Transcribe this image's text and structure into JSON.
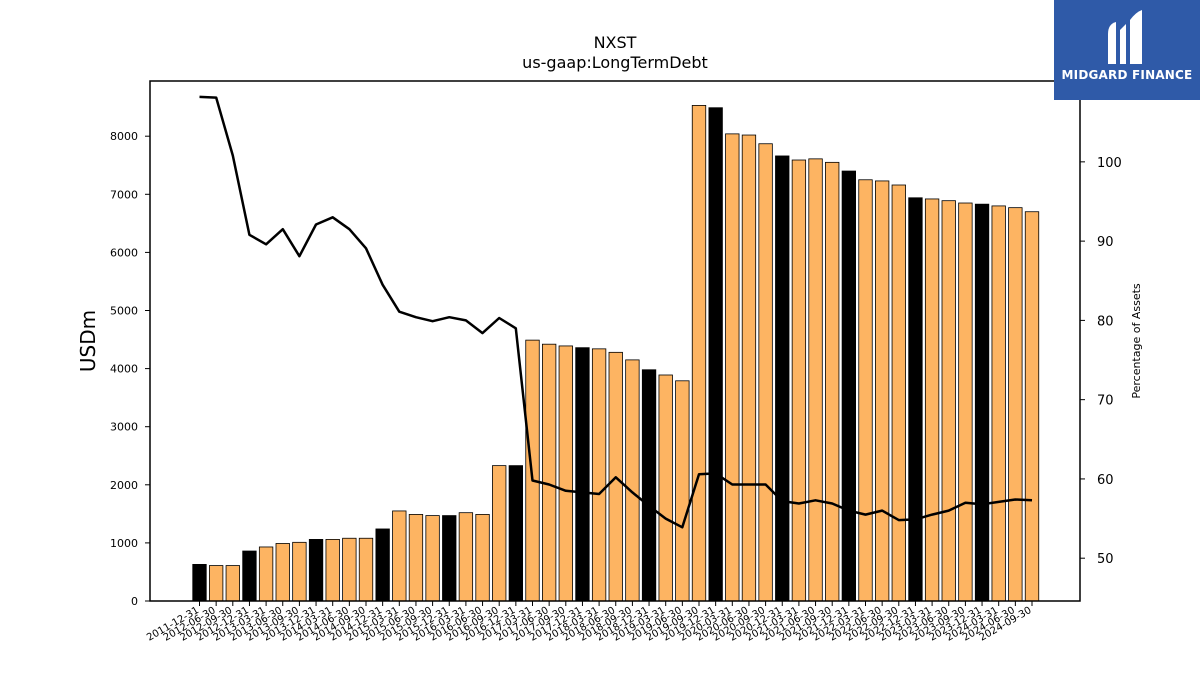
{
  "chart_data": {
    "type": "bar",
    "title": "NXST",
    "subtitle": "us-gaap:LongTermDebt",
    "ylabel": "USDm",
    "y2label": "Percentage of Assets",
    "ylim": [
      0,
      8950
    ],
    "y2lim": [
      44.6,
      110.2
    ],
    "yticks": [
      0,
      1000,
      2000,
      3000,
      4000,
      5000,
      6000,
      7000,
      8000
    ],
    "y2ticks": [
      50,
      60,
      70,
      80,
      90,
      100
    ],
    "categories": [
      "2011-12-31",
      "2012-06-30",
      "2012-09-30",
      "2012-12-31",
      "2013-03-31",
      "2013-06-30",
      "2013-09-30",
      "2013-12-31",
      "2014-03-31",
      "2014-06-30",
      "2014-09-30",
      "2014-12-31",
      "2015-03-31",
      "2015-06-30",
      "2015-09-30",
      "2015-12-31",
      "2016-03-31",
      "2016-06-30",
      "2016-09-30",
      "2016-12-31",
      "2017-03-31",
      "2017-06-30",
      "2017-09-30",
      "2017-12-31",
      "2018-03-31",
      "2018-06-30",
      "2018-09-30",
      "2018-12-31",
      "2019-03-31",
      "2019-06-30",
      "2019-09-30",
      "2019-12-31",
      "2020-03-31",
      "2020-06-30",
      "2020-09-30",
      "2020-12-31",
      "2021-03-31",
      "2021-06-30",
      "2021-09-30",
      "2021-12-31",
      "2022-03-31",
      "2022-06-30",
      "2022-09-30",
      "2022-12-31",
      "2023-03-31",
      "2023-06-30",
      "2023-09-30",
      "2023-12-31",
      "2024-03-31",
      "2024-06-30",
      "2024-09-30"
    ],
    "series": [
      {
        "type": "bar",
        "values": [
          630,
          610,
          610,
          860,
          930,
          990,
          1010,
          1060,
          1060,
          1080,
          1080,
          1240,
          1550,
          1490,
          1470,
          1470,
          1520,
          1490,
          2330,
          2330,
          4490,
          4420,
          4390,
          4360,
          4340,
          4280,
          4150,
          3980,
          3890,
          3790,
          8530,
          8490,
          8040,
          8020,
          7870,
          7660,
          7590,
          7610,
          7550,
          7400,
          7250,
          7230,
          7160,
          6940,
          6920,
          6890,
          6850,
          6830,
          6800,
          6770,
          6700
        ],
        "highlight": [
          true,
          false,
          false,
          true,
          false,
          false,
          false,
          true,
          false,
          false,
          false,
          true,
          false,
          false,
          false,
          true,
          false,
          false,
          false,
          true,
          false,
          false,
          false,
          true,
          false,
          false,
          false,
          true,
          false,
          false,
          false,
          true,
          false,
          false,
          false,
          true,
          false,
          false,
          false,
          true,
          false,
          false,
          false,
          true,
          false,
          false,
          false,
          true,
          false,
          false,
          false
        ]
      },
      {
        "type": "line",
        "axis": "right",
        "values": [
          108.2,
          108.1,
          100.8,
          90.8,
          89.6,
          91.5,
          88.1,
          92.1,
          93.0,
          91.5,
          89.1,
          84.5,
          81.1,
          80.4,
          79.9,
          80.4,
          80.0,
          78.4,
          80.3,
          79.0,
          59.8,
          59.3,
          58.5,
          58.3,
          58.1,
          60.2,
          58.3,
          56.6,
          55.0,
          53.9,
          60.6,
          60.7,
          59.3,
          59.3,
          59.3,
          57.2,
          56.9,
          57.3,
          56.9,
          56.0,
          55.5,
          56.0,
          54.8,
          54.9,
          55.5,
          56.0,
          57.0,
          56.8,
          57.1,
          57.4,
          57.3
        ]
      }
    ],
    "colors": {
      "bar": "#FDB462",
      "bar_highlight": "#000000",
      "line": "#000000"
    },
    "grid": false
  },
  "logo": {
    "text": "MIDGARD FINANCE"
  }
}
